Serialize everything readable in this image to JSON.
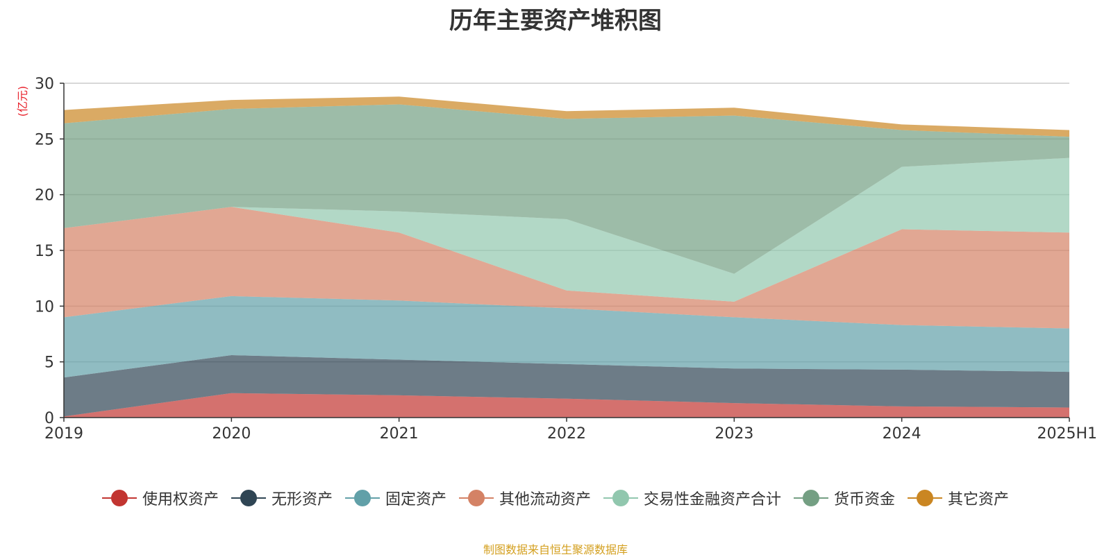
{
  "chart_data": {
    "type": "area",
    "stacked": true,
    "title": "历年主要资产堆积图",
    "y_unit": "(亿元)",
    "categories": [
      "2019",
      "2020",
      "2021",
      "2022",
      "2023",
      "2024",
      "2025H1"
    ],
    "ylim": [
      0,
      30
    ],
    "yticks": [
      0,
      5,
      10,
      15,
      20,
      25,
      30
    ],
    "grid": true,
    "legend_position": "bottom",
    "series": [
      {
        "name": "使用权资产",
        "color": "#c23531",
        "values": [
          0.1,
          2.2,
          2.0,
          1.7,
          1.3,
          1.0,
          0.9
        ]
      },
      {
        "name": "无形资产",
        "color": "#2f4554",
        "values": [
          3.5,
          3.4,
          3.2,
          3.1,
          3.1,
          3.3,
          3.2
        ]
      },
      {
        "name": "固定资产",
        "color": "#61a0a8",
        "values": [
          5.4,
          5.3,
          5.3,
          5.0,
          4.6,
          4.0,
          3.9
        ]
      },
      {
        "name": "其他流动资产",
        "color": "#d48265",
        "values": [
          8.0,
          8.0,
          6.1,
          1.6,
          1.4,
          8.6,
          8.6
        ]
      },
      {
        "name": "交易性金融资产合计",
        "color": "#91c7ae",
        "values": [
          0.0,
          0.0,
          1.9,
          6.4,
          2.5,
          5.6,
          6.7
        ]
      },
      {
        "name": "货币资金",
        "color": "#749f83",
        "values": [
          9.4,
          8.8,
          9.6,
          9.0,
          14.2,
          3.3,
          1.9
        ]
      },
      {
        "name": "其它资产",
        "color": "#ca8622",
        "values": [
          1.2,
          0.8,
          0.7,
          0.7,
          0.7,
          0.5,
          0.6
        ]
      }
    ]
  },
  "source_note": "制图数据来自恒生聚源数据库"
}
